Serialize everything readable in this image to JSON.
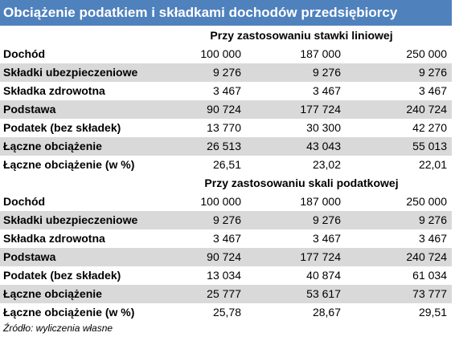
{
  "title": "Obciążenie podatkiem i składkami dochodów przedsiębiorcy",
  "sections": [
    {
      "subtitle": "Przy zastosowaniu stawki liniowej",
      "rows": [
        [
          "Dochód",
          "100 000",
          "187 000",
          "250 000"
        ],
        [
          "Składki ubezpieczeniowe",
          "9 276",
          "9 276",
          "9 276"
        ],
        [
          "Składka zdrowotna",
          "3 467",
          "3 467",
          "3 467"
        ],
        [
          "Podstawa",
          "90 724",
          "177 724",
          "240 724"
        ],
        [
          "Podatek (bez składek)",
          "13 770",
          "30 300",
          "42 270"
        ],
        [
          "Łączne obciążenie",
          "26 513",
          "43 043",
          "55 013"
        ],
        [
          "Łączne obciążenie (w %)",
          "26,51",
          "23,02",
          "22,01"
        ]
      ]
    },
    {
      "subtitle": "Przy zastosowaniu skali podatkowej",
      "rows": [
        [
          "Dochód",
          "100 000",
          "187 000",
          "250 000"
        ],
        [
          "Składki ubezpieczeniowe",
          "9 276",
          "9 276",
          "9 276"
        ],
        [
          "Składka zdrowotna",
          "3 467",
          "3 467",
          "3 467"
        ],
        [
          "Podstawa",
          "90 724",
          "177 724",
          "240 724"
        ],
        [
          "Podatek (bez składek)",
          "13 034",
          "40 874",
          "61 034"
        ],
        [
          "Łączne obciążenie",
          "25 777",
          "53 617",
          "73 777"
        ],
        [
          "Łączne obciążenie (w %)",
          "25,78",
          "28,67",
          "29,51"
        ]
      ]
    }
  ],
  "source": "Źródło: wyliczenia własne"
}
